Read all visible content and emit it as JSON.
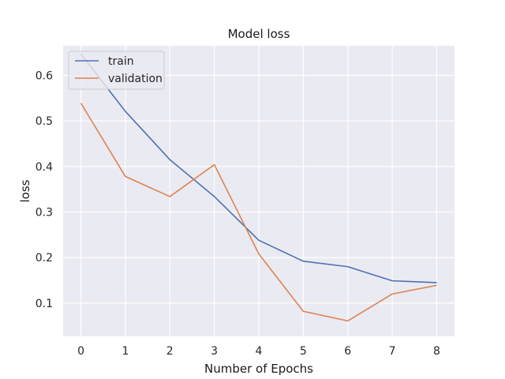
{
  "chart_data": {
    "type": "line",
    "title": "Model loss",
    "xlabel": "Number of Epochs",
    "ylabel": "loss",
    "x": [
      0,
      1,
      2,
      3,
      4,
      5,
      6,
      7,
      8
    ],
    "xlim": [
      -0.4,
      8.4
    ],
    "ylim": [
      0.027,
      0.665
    ],
    "xticks": [
      "0",
      "1",
      "2",
      "3",
      "4",
      "5",
      "6",
      "7",
      "8"
    ],
    "yticks": [
      0.1,
      0.2,
      0.3,
      0.4,
      0.5,
      0.6
    ],
    "ytick_labels": [
      "0.1",
      "0.2",
      "0.3",
      "0.4",
      "0.5",
      "0.6"
    ],
    "grid": true,
    "legend_position": "upper-left",
    "background_color": "#eaeaf2",
    "grid_color": "#ffffff",
    "series": [
      {
        "name": "train",
        "color": "#4c72b0",
        "values": [
          0.647,
          0.521,
          0.415,
          0.334,
          0.238,
          0.192,
          0.18,
          0.149,
          0.145
        ]
      },
      {
        "name": "validation",
        "color": "#dd8452",
        "values": [
          0.539,
          0.378,
          0.334,
          0.404,
          0.208,
          0.082,
          0.061,
          0.12,
          0.139
        ]
      }
    ]
  }
}
